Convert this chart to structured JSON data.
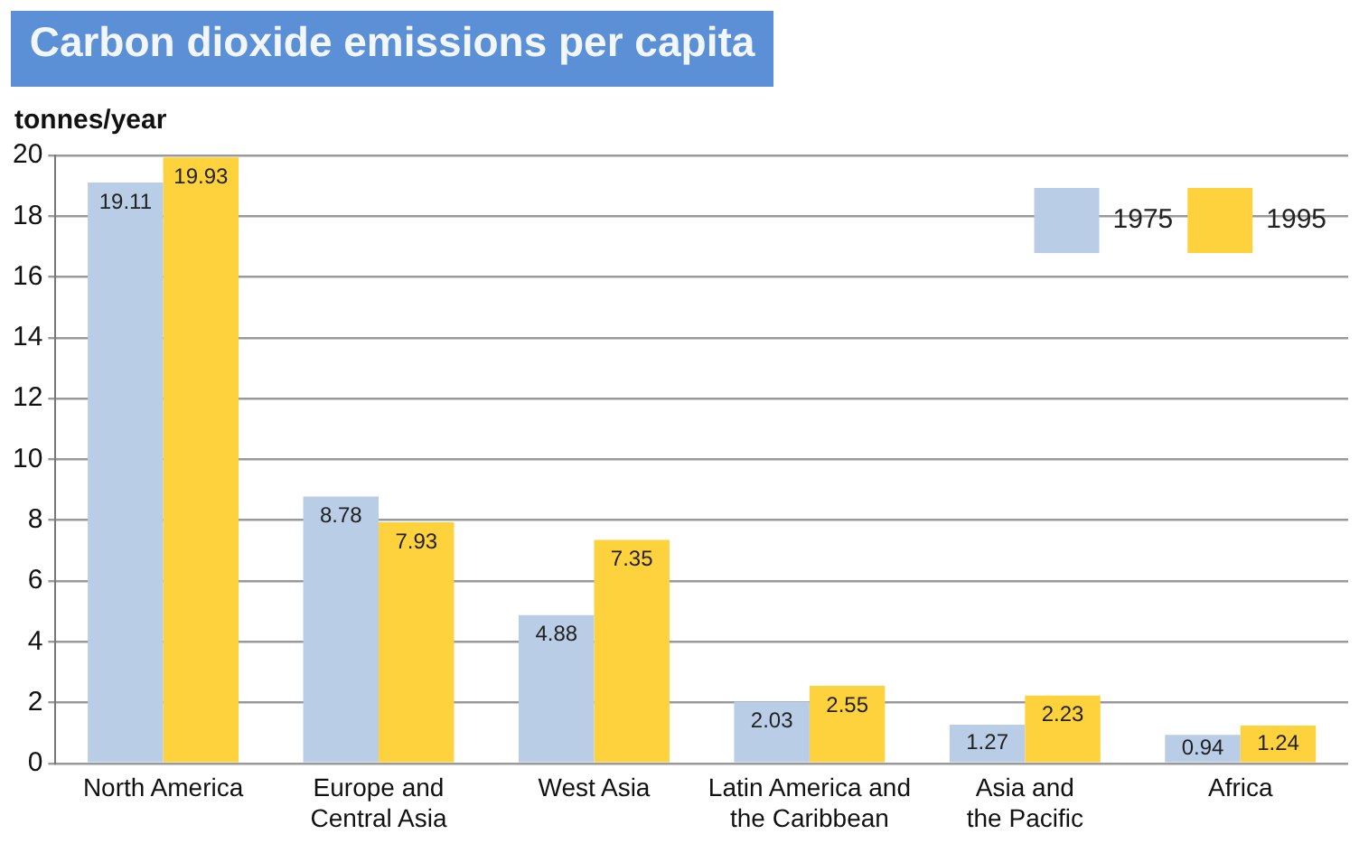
{
  "chart_data": {
    "type": "bar",
    "title": "Carbon dioxide emissions per capita",
    "ylabel": "tonnes/year",
    "categories": [
      "North America",
      "Europe and Central Asia",
      "West Asia",
      "Latin America and the Caribbean",
      "Asia and the Pacific",
      "Africa"
    ],
    "series": [
      {
        "name": "1975",
        "color": "#b9cde6",
        "values": [
          19.11,
          8.78,
          4.88,
          2.03,
          1.27,
          0.94
        ]
      },
      {
        "name": "1995",
        "color": "#fdd23c",
        "values": [
          19.93,
          7.93,
          7.35,
          2.55,
          2.23,
          1.24
        ]
      }
    ],
    "ylim": [
      0,
      20
    ],
    "yticks": [
      0,
      2,
      4,
      6,
      8,
      10,
      12,
      14,
      16,
      18,
      20
    ],
    "grid": "y",
    "legend": "top right",
    "data_labels": true
  }
}
